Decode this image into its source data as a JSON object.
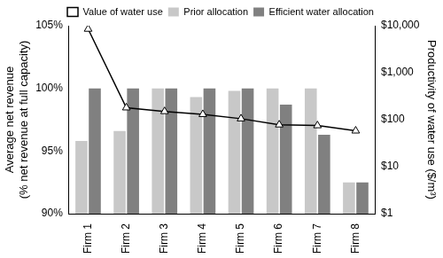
{
  "chart_data": {
    "type": "bar",
    "categories": [
      "Firm 1",
      "Firm 2",
      "Firm 3",
      "Firm 4",
      "Firm 5",
      "Firm 6",
      "Firm 7",
      "Firm 8"
    ],
    "series": [
      {
        "name": "Prior allocation",
        "color": "#c8c8c8",
        "values": [
          95.8,
          96.6,
          100,
          99.3,
          99.8,
          100,
          100,
          92.5
        ]
      },
      {
        "name": "Efficient water allocation",
        "color": "#808080",
        "values": [
          100,
          100,
          100,
          100,
          100,
          98.7,
          96.3,
          92.5
        ]
      },
      {
        "name": "Value of water use",
        "type": "line",
        "axis": "y2",
        "color": "#000000",
        "marker": "triangle",
        "line_style": "solid",
        "values": [
          8500,
          180,
          150,
          130,
          105,
          78,
          75,
          58
        ]
      }
    ],
    "ylabel": [
      "Average net revenue",
      "(% net revenue at full capacity)"
    ],
    "y2label": "Productivity of water use ($/m³)",
    "ylim": [
      90,
      105
    ],
    "yticks": [
      {
        "value": 90,
        "label": "90%"
      },
      {
        "value": 95,
        "label": "95%"
      },
      {
        "value": 100,
        "label": "100%"
      },
      {
        "value": 105,
        "label": "105%"
      }
    ],
    "y2lim": [
      1,
      10000
    ],
    "y2ticks": [
      {
        "value": 1,
        "label": "$1"
      },
      {
        "value": 10,
        "label": "$10"
      },
      {
        "value": 100,
        "label": "$100"
      },
      {
        "value": 1000,
        "label": "$1,000"
      },
      {
        "value": 10000,
        "label": "$10,000"
      }
    ],
    "log": "y2",
    "grid": false,
    "legend": "top"
  }
}
